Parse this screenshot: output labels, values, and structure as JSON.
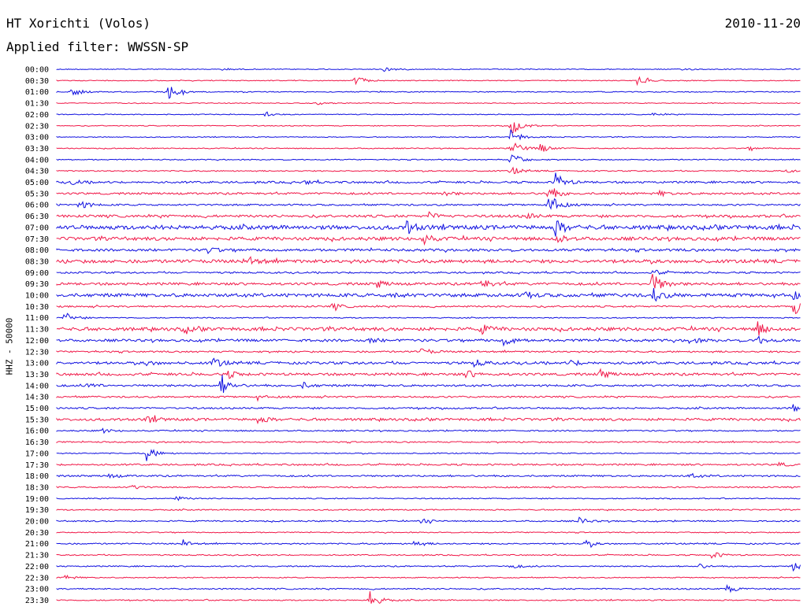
{
  "header": {
    "station": "HT Xorichti (Volos)",
    "date": "2010-11-20",
    "filter": "Applied filter: WWSSN-SP"
  },
  "channel_label": "HHZ - 50000",
  "colors": {
    "blue": "#1010e0",
    "red": "#f01848"
  },
  "chart_data": {
    "type": "line",
    "title": "HT Xorichti (Volos)",
    "subtitle": "Applied filter: WWSSN-SP",
    "ylabel": "HHZ - 50000",
    "xlabel": "",
    "grid": false,
    "rows": [
      {
        "label": "00:00",
        "color": "blue",
        "noise": 0.5,
        "events": [
          [
            0.22,
            2
          ],
          [
            0.44,
            3
          ],
          [
            0.84,
            2
          ]
        ]
      },
      {
        "label": "00:30",
        "color": "red",
        "noise": 0.5,
        "events": [
          [
            0.4,
            7
          ],
          [
            0.78,
            6
          ]
        ]
      },
      {
        "label": "01:00",
        "color": "blue",
        "noise": 0.6,
        "events": [
          [
            0.02,
            6
          ],
          [
            0.15,
            9
          ]
        ]
      },
      {
        "label": "01:30",
        "color": "red",
        "noise": 0.5,
        "events": [
          [
            0.35,
            2
          ]
        ]
      },
      {
        "label": "02:00",
        "color": "blue",
        "noise": 0.5,
        "events": [
          [
            0.28,
            2
          ],
          [
            0.8,
            2
          ]
        ]
      },
      {
        "label": "02:30",
        "color": "red",
        "noise": 0.5,
        "events": [
          [
            0.61,
            14
          ]
        ]
      },
      {
        "label": "03:00",
        "color": "blue",
        "noise": 0.5,
        "events": [
          [
            0.61,
            10
          ]
        ]
      },
      {
        "label": "03:30",
        "color": "red",
        "noise": 0.6,
        "events": [
          [
            0.61,
            12
          ],
          [
            0.65,
            6
          ],
          [
            0.93,
            2
          ]
        ]
      },
      {
        "label": "04:00",
        "color": "blue",
        "noise": 0.6,
        "events": [
          [
            0.61,
            10
          ]
        ]
      },
      {
        "label": "04:30",
        "color": "red",
        "noise": 0.7,
        "events": [
          [
            0.61,
            6
          ],
          [
            0.98,
            2
          ]
        ]
      },
      {
        "label": "05:00",
        "color": "blue",
        "noise": 1.2,
        "events": [
          [
            0.02,
            3
          ],
          [
            0.33,
            3
          ],
          [
            0.67,
            12
          ]
        ]
      },
      {
        "label": "05:30",
        "color": "red",
        "noise": 1.2,
        "events": [
          [
            0.52,
            3
          ],
          [
            0.66,
            10
          ],
          [
            0.81,
            3
          ]
        ]
      },
      {
        "label": "06:00",
        "color": "blue",
        "noise": 1.0,
        "events": [
          [
            0.03,
            6
          ],
          [
            0.66,
            16
          ]
        ]
      },
      {
        "label": "06:30",
        "color": "red",
        "noise": 1.5,
        "events": [
          [
            0.5,
            4
          ],
          [
            0.63,
            4
          ]
        ]
      },
      {
        "label": "07:00",
        "color": "blue",
        "noise": 2.5,
        "events": [
          [
            0.47,
            8
          ],
          [
            0.67,
            10
          ]
        ]
      },
      {
        "label": "07:30",
        "color": "red",
        "noise": 2.0,
        "events": [
          [
            0.49,
            7
          ],
          [
            0.67,
            6
          ]
        ]
      },
      {
        "label": "08:00",
        "color": "blue",
        "noise": 1.5,
        "events": [
          [
            0.2,
            5
          ]
        ]
      },
      {
        "label": "08:30",
        "color": "red",
        "noise": 2.0,
        "events": [
          [
            0.26,
            4
          ]
        ]
      },
      {
        "label": "09:00",
        "color": "blue",
        "noise": 1.0,
        "events": [
          [
            0.8,
            4
          ]
        ]
      },
      {
        "label": "09:30",
        "color": "red",
        "noise": 1.5,
        "events": [
          [
            0.43,
            5
          ],
          [
            0.57,
            7
          ],
          [
            0.8,
            16
          ]
        ]
      },
      {
        "label": "10:00",
        "color": "blue",
        "noise": 2.0,
        "events": [
          [
            0.45,
            4
          ],
          [
            0.63,
            4
          ],
          [
            0.8,
            10
          ],
          [
            0.99,
            4
          ]
        ]
      },
      {
        "label": "10:30",
        "color": "red",
        "noise": 1.0,
        "events": [
          [
            0.37,
            4
          ],
          [
            0.99,
            12
          ]
        ]
      },
      {
        "label": "11:00",
        "color": "blue",
        "noise": 0.6,
        "events": [
          [
            0.01,
            8
          ]
        ]
      },
      {
        "label": "11:30",
        "color": "red",
        "noise": 2.0,
        "events": [
          [
            0.17,
            4
          ],
          [
            0.57,
            6
          ],
          [
            0.94,
            10
          ]
        ]
      },
      {
        "label": "12:00",
        "color": "blue",
        "noise": 1.5,
        "events": [
          [
            0.42,
            3
          ],
          [
            0.6,
            7
          ],
          [
            0.85,
            4
          ],
          [
            0.94,
            6
          ]
        ]
      },
      {
        "label": "12:30",
        "color": "red",
        "noise": 1.0,
        "events": [
          [
            0.49,
            5
          ]
        ]
      },
      {
        "label": "13:00",
        "color": "blue",
        "noise": 1.5,
        "events": [
          [
            0.12,
            3
          ],
          [
            0.21,
            7
          ],
          [
            0.56,
            5
          ],
          [
            0.69,
            4
          ]
        ]
      },
      {
        "label": "13:30",
        "color": "red",
        "noise": 1.5,
        "events": [
          [
            0.23,
            4
          ],
          [
            0.55,
            5
          ],
          [
            0.73,
            6
          ]
        ]
      },
      {
        "label": "14:00",
        "color": "blue",
        "noise": 1.2,
        "events": [
          [
            0.04,
            3
          ],
          [
            0.22,
            12
          ],
          [
            0.33,
            4
          ]
        ]
      },
      {
        "label": "14:30",
        "color": "red",
        "noise": 1.0,
        "events": [
          [
            0.27,
            2
          ]
        ]
      },
      {
        "label": "15:00",
        "color": "blue",
        "noise": 1.0,
        "events": [
          [
            0.99,
            5
          ]
        ]
      },
      {
        "label": "15:30",
        "color": "red",
        "noise": 1.5,
        "events": [
          [
            0.12,
            5
          ],
          [
            0.27,
            5
          ]
        ]
      },
      {
        "label": "16:00",
        "color": "blue",
        "noise": 0.8,
        "events": [
          [
            0.06,
            3
          ]
        ]
      },
      {
        "label": "16:30",
        "color": "red",
        "noise": 0.8,
        "events": []
      },
      {
        "label": "17:00",
        "color": "blue",
        "noise": 0.6,
        "events": [
          [
            0.12,
            10
          ]
        ]
      },
      {
        "label": "17:30",
        "color": "red",
        "noise": 1.0,
        "events": [
          [
            0.97,
            3
          ]
        ]
      },
      {
        "label": "18:00",
        "color": "blue",
        "noise": 1.0,
        "events": [
          [
            0.07,
            3
          ],
          [
            0.85,
            3
          ]
        ]
      },
      {
        "label": "18:30",
        "color": "red",
        "noise": 0.8,
        "events": [
          [
            0.1,
            3
          ]
        ]
      },
      {
        "label": "19:00",
        "color": "blue",
        "noise": 0.6,
        "events": [
          [
            0.16,
            3
          ]
        ]
      },
      {
        "label": "19:30",
        "color": "red",
        "noise": 0.7,
        "events": []
      },
      {
        "label": "20:00",
        "color": "blue",
        "noise": 0.8,
        "events": [
          [
            0.49,
            3
          ],
          [
            0.7,
            5
          ]
        ]
      },
      {
        "label": "20:30",
        "color": "red",
        "noise": 0.6,
        "events": []
      },
      {
        "label": "21:00",
        "color": "blue",
        "noise": 0.8,
        "events": [
          [
            0.17,
            3
          ],
          [
            0.48,
            4
          ],
          [
            0.71,
            4
          ]
        ]
      },
      {
        "label": "21:30",
        "color": "red",
        "noise": 0.7,
        "events": [
          [
            0.88,
            5
          ]
        ]
      },
      {
        "label": "22:00",
        "color": "blue",
        "noise": 0.7,
        "events": [
          [
            0.61,
            3
          ],
          [
            0.86,
            4
          ],
          [
            0.99,
            6
          ]
        ]
      },
      {
        "label": "22:30",
        "color": "red",
        "noise": 0.6,
        "events": [
          [
            0.01,
            3
          ]
        ]
      },
      {
        "label": "23:00",
        "color": "blue",
        "noise": 0.8,
        "events": [
          [
            0.9,
            6
          ]
        ]
      },
      {
        "label": "23:30",
        "color": "red",
        "noise": 0.7,
        "events": [
          [
            0.42,
            12
          ]
        ]
      }
    ]
  }
}
